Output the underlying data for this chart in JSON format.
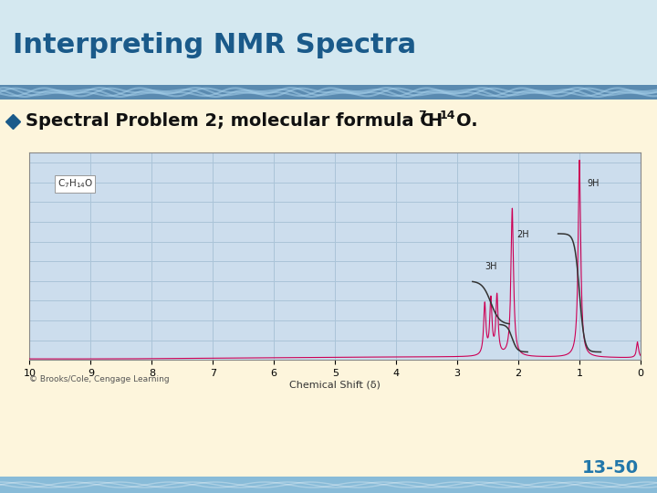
{
  "title": "Interpreting NMR Spectra",
  "title_color": "#1a5a8a",
  "title_bg_color": "#d4e8f0",
  "slide_bg_color": "#fdf5dc",
  "bullet_color": "#111111",
  "diamond_color": "#1a5a8a",
  "nmr_bg_color": "#ccdded",
  "nmr_grid_color": "#aac4d8",
  "spectrum_color": "#cc0055",
  "integral_color": "#333333",
  "xlabel": "Chemical Shift (δ)",
  "footer_text": "© Brooks/Cole, Cengage Learning",
  "page_number": "13-50",
  "page_number_color": "#2277aa",
  "wave_color_light": "#8cc8e8",
  "wave_color_dark": "#4488aa",
  "header_band_color": "#5a8ab0",
  "bottom_wave_color": "#88bbd8"
}
